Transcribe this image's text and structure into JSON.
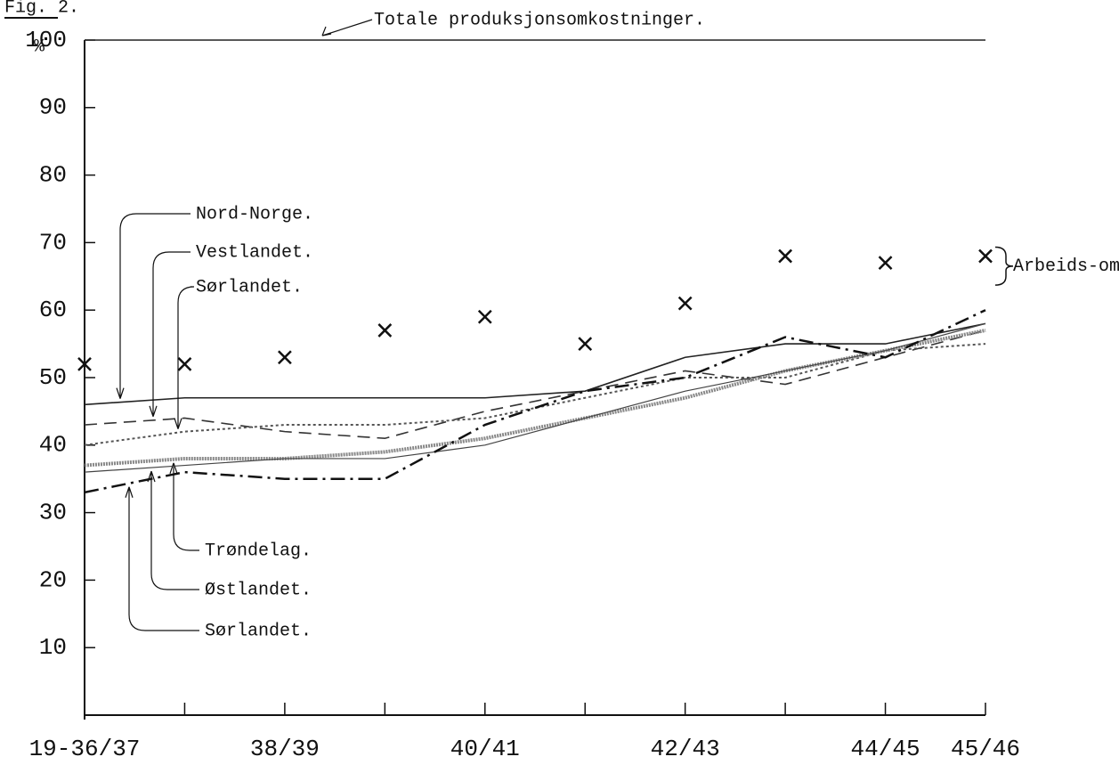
{
  "chart_data": {
    "type": "line",
    "title": "Fig. 2.",
    "y_label": "%",
    "categories": [
      "19-36/37",
      null,
      "38/39",
      null,
      "40/41",
      null,
      "42/43",
      null,
      "44/45",
      "45/46"
    ],
    "ylim": [
      0,
      100
    ],
    "yticks": [
      10,
      20,
      30,
      40,
      50,
      60,
      70,
      80,
      90,
      100
    ],
    "series": [
      {
        "name": "Totale produksjonsomkostninger.",
        "color": "#222",
        "style": "solid",
        "values": [
          100,
          100,
          100,
          100,
          100,
          100,
          100,
          100,
          100,
          100
        ]
      },
      {
        "name": "Arbeids-omkostn.",
        "color": "#111",
        "style": "marker",
        "values": [
          52,
          52,
          53,
          57,
          59,
          55,
          61,
          68,
          67,
          68
        ]
      },
      {
        "name": "Nord-Norge.",
        "color": "#222",
        "style": "solid",
        "values": [
          46,
          47,
          47,
          47,
          47,
          48,
          53,
          55,
          55,
          58
        ]
      },
      {
        "name": "Vestlandet.",
        "color": "#333",
        "style": "dashed",
        "values": [
          43,
          44,
          42,
          41,
          45,
          48,
          51,
          49,
          53,
          57
        ]
      },
      {
        "name": "Sørlandet.",
        "color": "#555",
        "style": "dotted",
        "values": [
          40,
          42,
          43,
          43,
          44,
          47,
          50,
          50,
          54,
          55
        ]
      },
      {
        "name": "Trøndelag.",
        "color": "#888",
        "style": "shaded",
        "values": [
          37,
          38,
          38,
          39,
          41,
          44,
          47,
          51,
          54,
          57
        ]
      },
      {
        "name": "Østlandet.",
        "color": "#444",
        "style": "thin",
        "values": [
          36,
          37,
          38,
          38,
          40,
          44,
          48,
          51,
          54,
          58
        ]
      },
      {
        "name": "Sørlandet.",
        "color": "#111",
        "style": "dashdot",
        "values": [
          33,
          36,
          35,
          35,
          43,
          48,
          50,
          56,
          53,
          60
        ]
      }
    ]
  }
}
